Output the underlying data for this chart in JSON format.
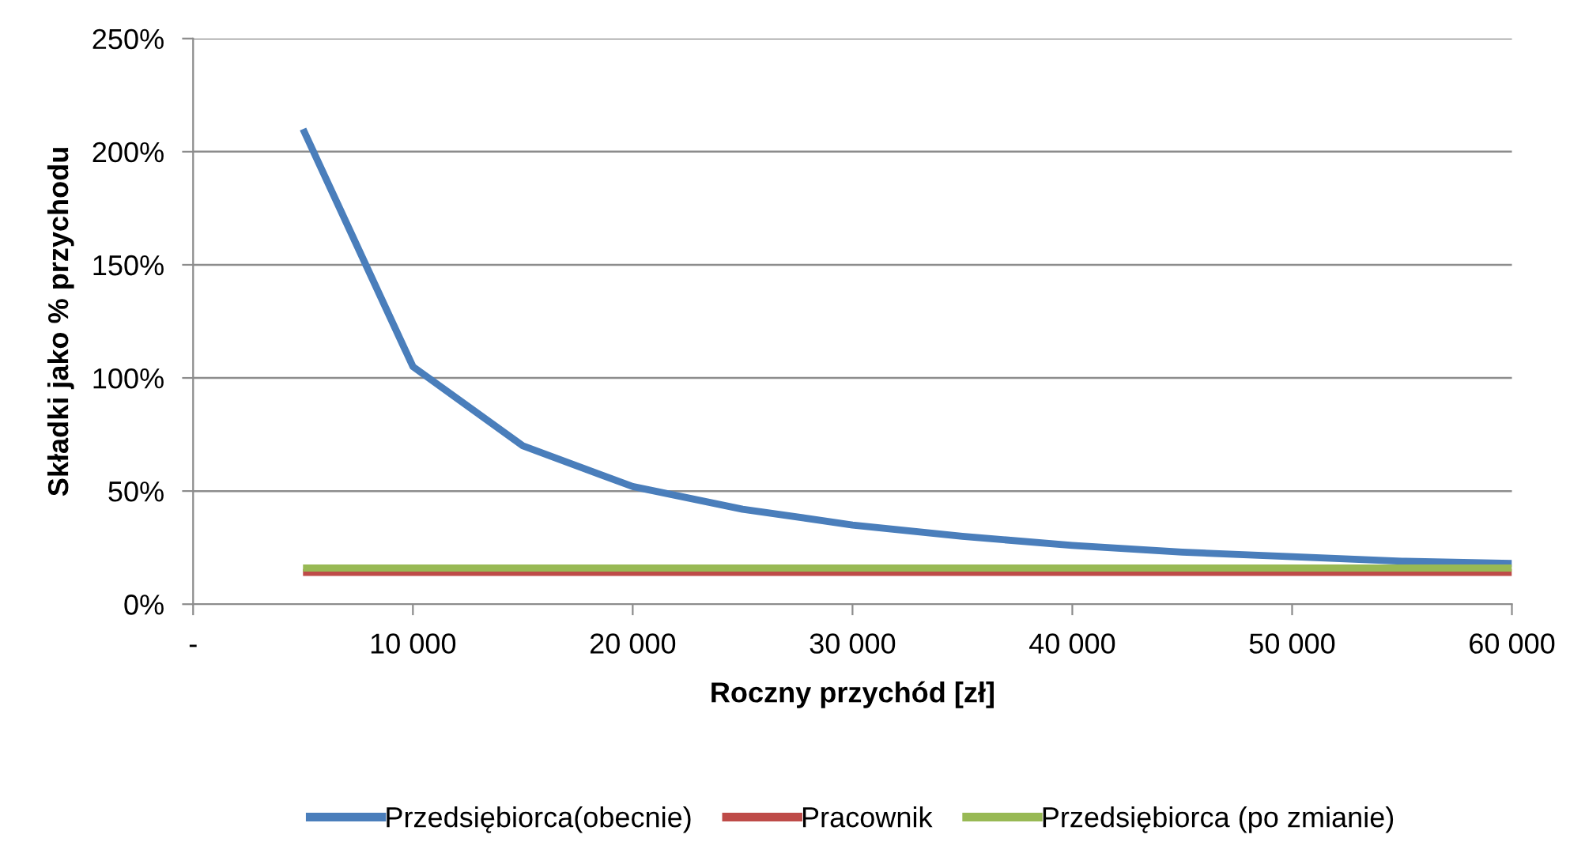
{
  "chart_data": {
    "type": "line",
    "xlabel": "Roczny przychód [zł]",
    "ylabel": "Składki jako % przychodu",
    "x": [
      5000,
      10000,
      15000,
      20000,
      25000,
      30000,
      35000,
      40000,
      45000,
      50000,
      55000,
      60000
    ],
    "series": [
      {
        "name": "Przedsiębiorca(obecnie)",
        "color": "#4a7ebb",
        "values": [
          210,
          105,
          70,
          52,
          42,
          35,
          30,
          26,
          23,
          21,
          19,
          18
        ]
      },
      {
        "name": "Pracownik",
        "color": "#be4b48",
        "values": [
          14,
          14,
          14,
          14,
          14,
          14,
          14,
          14,
          14,
          14,
          14,
          14
        ]
      },
      {
        "name": "Przedsiębiorca (po zmianie)",
        "color": "#98b954",
        "values": [
          16,
          16,
          16,
          16,
          16,
          16,
          16,
          16,
          16,
          16,
          16,
          16
        ]
      }
    ],
    "xlim": [
      0,
      60000
    ],
    "xticks": [
      {
        "value": 0,
        "label": "-"
      },
      {
        "value": 10000,
        "label": "10 000"
      },
      {
        "value": 20000,
        "label": "20 000"
      },
      {
        "value": 30000,
        "label": "30 000"
      },
      {
        "value": 40000,
        "label": "40 000"
      },
      {
        "value": 50000,
        "label": "50 000"
      },
      {
        "value": 60000,
        "label": "60 000"
      }
    ],
    "ylim": [
      0,
      250
    ],
    "yticks": [
      {
        "value": 0,
        "label": "0%"
      },
      {
        "value": 50,
        "label": "50%"
      },
      {
        "value": 100,
        "label": "100%"
      },
      {
        "value": 150,
        "label": "150%"
      },
      {
        "value": 200,
        "label": "200%"
      },
      {
        "value": 250,
        "label": "250%"
      }
    ],
    "grid": "y",
    "legend": "bottom",
    "marker": "none",
    "line_style": "solid"
  }
}
